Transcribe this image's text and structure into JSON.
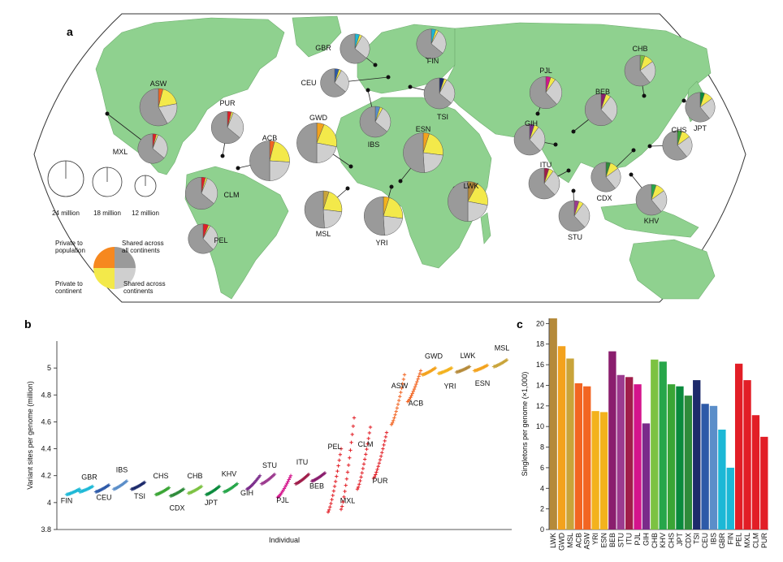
{
  "panels": {
    "a": "a",
    "b": "b",
    "c": "c"
  },
  "colors": {
    "sea": "#ffffff",
    "land": "#8fd18f",
    "gray": "#9a9a9a",
    "light_gray": "#cfcfcf",
    "yellow": "#f3e94a"
  },
  "map_legend": {
    "sizes": [
      "24 million",
      "18 million",
      "12 million"
    ],
    "quadrants": {
      "private_population": "Private to population",
      "private_continent": "Private to continent",
      "shared_all": "Shared across all continents",
      "shared_continents": "Shared across continents"
    },
    "legend_color": "#f6881f"
  },
  "map_pies": [
    {
      "name": "ASW",
      "color": "#f26522",
      "pop": 0.04,
      "cont": 0.18,
      "conts": 0.2,
      "total": 20
    },
    {
      "name": "MXL",
      "color": "#e21e26",
      "pop": 0.04,
      "cont": 0.02,
      "conts": 0.3,
      "total": 14
    },
    {
      "name": "PUR",
      "color": "#e21e26",
      "pop": 0.04,
      "cont": 0.02,
      "conts": 0.3,
      "total": 16
    },
    {
      "name": "ACB",
      "color": "#f26522",
      "pop": 0.04,
      "cont": 0.22,
      "conts": 0.24,
      "total": 22
    },
    {
      "name": "CLM",
      "color": "#e21e26",
      "pop": 0.04,
      "cont": 0.02,
      "conts": 0.3,
      "total": 16
    },
    {
      "name": "PEL",
      "color": "#e21e26",
      "pop": 0.06,
      "cont": 0.02,
      "conts": 0.3,
      "total": 14
    },
    {
      "name": "GBR",
      "color": "#1cb8d6",
      "pop": 0.05,
      "cont": 0.03,
      "conts": 0.28,
      "total": 14
    },
    {
      "name": "CEU",
      "color": "#2e5aa8",
      "pop": 0.05,
      "cont": 0.03,
      "conts": 0.28,
      "total": 13
    },
    {
      "name": "FIN",
      "color": "#1cb8d6",
      "pop": 0.05,
      "cont": 0.03,
      "conts": 0.28,
      "total": 14
    },
    {
      "name": "TSI",
      "color": "#1d2a6b",
      "pop": 0.05,
      "cont": 0.03,
      "conts": 0.28,
      "total": 15
    },
    {
      "name": "IBS",
      "color": "#5b8ec9",
      "pop": 0.05,
      "cont": 0.03,
      "conts": 0.28,
      "total": 15
    },
    {
      "name": "GWD",
      "color": "#f3a21d",
      "pop": 0.06,
      "cont": 0.22,
      "conts": 0.22,
      "total": 22
    },
    {
      "name": "ESN",
      "color": "#f3a21d",
      "pop": 0.05,
      "cont": 0.22,
      "conts": 0.22,
      "total": 22
    },
    {
      "name": "MSL",
      "color": "#c9a43a",
      "pop": 0.05,
      "cont": 0.22,
      "conts": 0.22,
      "total": 20
    },
    {
      "name": "YRI",
      "color": "#f3b21d",
      "pop": 0.05,
      "cont": 0.22,
      "conts": 0.22,
      "total": 21
    },
    {
      "name": "LWK",
      "color": "#b58a3a",
      "pop": 0.08,
      "cont": 0.2,
      "conts": 0.22,
      "total": 22
    },
    {
      "name": "PJL",
      "color": "#d4148c",
      "pop": 0.05,
      "cont": 0.05,
      "conts": 0.28,
      "total": 16
    },
    {
      "name": "BEB",
      "color": "#8a1e6e",
      "pop": 0.05,
      "cont": 0.05,
      "conts": 0.28,
      "total": 16
    },
    {
      "name": "GIH",
      "color": "#7a2b8a",
      "pop": 0.05,
      "cont": 0.05,
      "conts": 0.28,
      "total": 15
    },
    {
      "name": "ITU",
      "color": "#a01d4a",
      "pop": 0.05,
      "cont": 0.05,
      "conts": 0.28,
      "total": 15
    },
    {
      "name": "STU",
      "color": "#9c3b8f",
      "pop": 0.05,
      "cont": 0.05,
      "conts": 0.28,
      "total": 15
    },
    {
      "name": "CHB",
      "color": "#7cc242",
      "pop": 0.05,
      "cont": 0.1,
      "conts": 0.24,
      "total": 15
    },
    {
      "name": "JPT",
      "color": "#0a8a3c",
      "pop": 0.05,
      "cont": 0.1,
      "conts": 0.24,
      "total": 14
    },
    {
      "name": "CHS",
      "color": "#3aa535",
      "pop": 0.05,
      "cont": 0.1,
      "conts": 0.24,
      "total": 14
    },
    {
      "name": "CDX",
      "color": "#2e8b3a",
      "pop": 0.05,
      "cont": 0.1,
      "conts": 0.24,
      "total": 14
    },
    {
      "name": "KHV",
      "color": "#27a64a",
      "pop": 0.05,
      "cont": 0.1,
      "conts": 0.24,
      "total": 15
    }
  ],
  "chart_data": [
    {
      "type": "scatter",
      "panel": "b",
      "xlabel": "Individual",
      "ylabel": "Variant sites per genome (million)",
      "ylim": [
        3.8,
        5.2
      ],
      "yticks": [
        3.8,
        4.0,
        4.2,
        4.4,
        4.6,
        4.8,
        5.0
      ],
      "ytick_labels": [
        "3.8",
        "4",
        "4.2",
        "4.4",
        "4.6",
        "4.8",
        "5"
      ],
      "series": [
        {
          "name": "FIN",
          "color": "#1cb8d6",
          "low": 4.06,
          "high": 4.1
        },
        {
          "name": "GBR",
          "color": "#1cb8d6",
          "low": 4.08,
          "high": 4.12
        },
        {
          "name": "CEU",
          "color": "#2e5aa8",
          "low": 4.08,
          "high": 4.13
        },
        {
          "name": "IBS",
          "color": "#5b8ec9",
          "low": 4.1,
          "high": 4.16
        },
        {
          "name": "TSI",
          "color": "#1d2a6b",
          "low": 4.1,
          "high": 4.15
        },
        {
          "name": "CHS",
          "color": "#3aa535",
          "low": 4.06,
          "high": 4.11
        },
        {
          "name": "CDX",
          "color": "#2e8b3a",
          "low": 4.05,
          "high": 4.1
        },
        {
          "name": "CHB",
          "color": "#7cc242",
          "low": 4.07,
          "high": 4.12
        },
        {
          "name": "JPT",
          "color": "#0a8a3c",
          "low": 4.06,
          "high": 4.12
        },
        {
          "name": "KHV",
          "color": "#27a64a",
          "low": 4.08,
          "high": 4.14
        },
        {
          "name": "GIH",
          "color": "#7a2b8a",
          "low": 4.1,
          "high": 4.2
        },
        {
          "name": "STU",
          "color": "#9c3b8f",
          "low": 4.14,
          "high": 4.21
        },
        {
          "name": "PJL",
          "color": "#d4148c",
          "low": 4.04,
          "high": 4.2
        },
        {
          "name": "ITU",
          "color": "#a01d4a",
          "low": 4.14,
          "high": 4.21
        },
        {
          "name": "BEB",
          "color": "#8a1e6e",
          "low": 4.16,
          "high": 4.22
        },
        {
          "name": "MXL",
          "color": "#e21e26",
          "low": 3.93,
          "high": 4.4
        },
        {
          "name": "PEL",
          "color": "#e21e26",
          "low": 3.95,
          "high": 4.63
        },
        {
          "name": "CLM",
          "color": "#e21e26",
          "low": 4.1,
          "high": 4.56
        },
        {
          "name": "PUR",
          "color": "#e21e26",
          "low": 4.18,
          "high": 4.52
        },
        {
          "name": "ASW",
          "color": "#f26522",
          "low": 4.58,
          "high": 4.95
        },
        {
          "name": "ACB",
          "color": "#f26522",
          "low": 4.75,
          "high": 4.98
        },
        {
          "name": "GWD",
          "color": "#f3a21d",
          "low": 4.95,
          "high": 5.0
        },
        {
          "name": "YRI",
          "color": "#f3b21d",
          "low": 4.96,
          "high": 5.0
        },
        {
          "name": "LWK",
          "color": "#b58a3a",
          "low": 4.97,
          "high": 5.01
        },
        {
          "name": "ESN",
          "color": "#f3a21d",
          "low": 4.98,
          "high": 5.02
        },
        {
          "name": "MSL",
          "color": "#c9a43a",
          "low": 5.01,
          "high": 5.06
        }
      ]
    },
    {
      "type": "bar",
      "panel": "c",
      "ylabel": "Singletons per genome (×1,000)",
      "ylim": [
        0,
        20.5
      ],
      "yticks": [
        0,
        2,
        4,
        6,
        8,
        10,
        12,
        14,
        16,
        18,
        20
      ],
      "categories": [
        "LWK",
        "GWD",
        "MSL",
        "ACB",
        "ASW",
        "YRI",
        "ESN",
        "BEB",
        "STU",
        "ITU",
        "PJL",
        "GIH",
        "CHB",
        "KHV",
        "CHS",
        "JPT",
        "CDX",
        "TSI",
        "CEU",
        "IBS",
        "GBR",
        "FIN",
        "PEL",
        "MXL",
        "CLM",
        "PUR"
      ],
      "values": [
        20.5,
        17.8,
        16.6,
        14.2,
        13.9,
        11.5,
        11.4,
        17.3,
        15.0,
        14.8,
        14.1,
        10.3,
        16.5,
        16.3,
        14.1,
        13.9,
        13.0,
        14.5,
        12.2,
        12.0,
        9.7,
        6.0,
        16.1,
        14.5,
        11.1,
        9.0
      ],
      "colors": [
        "#b58a3a",
        "#f3a21d",
        "#c9a43a",
        "#f26522",
        "#f26522",
        "#f3b21d",
        "#f3b21d",
        "#8a1e6e",
        "#9c3b8f",
        "#a01d4a",
        "#d4148c",
        "#7a2b8a",
        "#7cc242",
        "#27a64a",
        "#3aa535",
        "#0a8a3c",
        "#2e8b3a",
        "#1d2a6b",
        "#2e5aa8",
        "#5b8ec9",
        "#1cb8d6",
        "#1cb8d6",
        "#e21e26",
        "#e21e26",
        "#e21e26",
        "#e21e26"
      ]
    }
  ]
}
